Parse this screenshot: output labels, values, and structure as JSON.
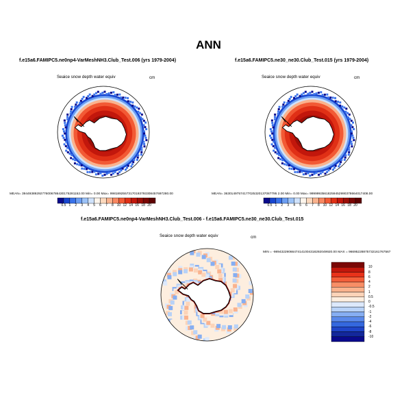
{
  "figure": {
    "title": "ANN"
  },
  "panels": [
    {
      "case_title": "f.e15a6.FAMIPC5.ne0np4-VarMeshNH3.Club_Test.006 (yrs 1979-2004)",
      "variable_label": "Seaice snow depth water equiv",
      "units": "cm",
      "stats": "MEAN= 39449389292776006786430175281152.00  Min=   0.00  Max= 99818925573170193793308457697280.00"
    },
    {
      "case_title": "f.e15a6.FAMIPC5.ne30_ne30.Club_Test.015 (yrs 1979-2004)",
      "variable_label": "Seaice snow depth water equiv",
      "units": "cm",
      "stats": "MEAN= 36301497574177025320137087795 2.00  Min=   0.00  Max= 99999935618259452990378664017408.00"
    },
    {
      "case_title": "f.e15a6.FAMIPC5.ne0np4-VarMeshNH3.Club_Test.006 - f.e15a6.FAMIPC5.ne30_ne30.Club_Test.015",
      "variable_label": "Seaice snow depth water equiv",
      "units": "cm",
      "stats": "MIN = -98943229066474141004318292049920.00  MAX = 96695228875732161767567"
    }
  ],
  "colorbar_abs": {
    "labels": [
      "0.5",
      "1",
      "2",
      "3",
      "4",
      "5",
      "6",
      "7",
      "8",
      "10",
      "12",
      "14",
      "16",
      "18",
      "20"
    ],
    "colors": [
      "#0a0a8c",
      "#1846d0",
      "#3a72ea",
      "#6c9ef2",
      "#9cc2f7",
      "#cfe2fb",
      "#fdf5ec",
      "#fcd9be",
      "#fab38e",
      "#f88861",
      "#f25a35",
      "#e03016",
      "#c2170c",
      "#9c0f08",
      "#7a0705",
      "#5e0302"
    ]
  },
  "colorbar_diff": {
    "labels": [
      "10",
      "8",
      "6",
      "4",
      "2",
      "1",
      "0.5",
      "0",
      "-0.5",
      "-1",
      "-2",
      "-4",
      "-6",
      "-8",
      "-10"
    ],
    "colors": [
      "#7a0705",
      "#c2170c",
      "#e8321a",
      "#f45f3a",
      "#f88e66",
      "#fab38e",
      "#fcd3b8",
      "#fdeedf",
      "#dde9fb",
      "#b8d2f7",
      "#86aef2",
      "#5a89ea",
      "#3468de",
      "#1f45c8",
      "#13289c",
      "#0a0a8c"
    ]
  },
  "colors": {
    "land_white": "#ffffff",
    "ocean_white": "#ffffff",
    "coastline": "#000000"
  }
}
